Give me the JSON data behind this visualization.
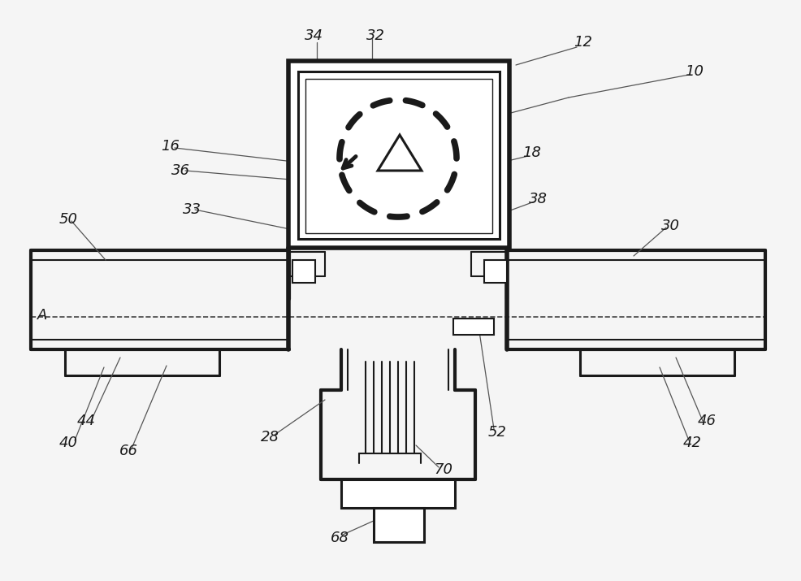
{
  "bg_color": "#f5f5f5",
  "line_color": "#1a1a1a",
  "label_fontsize": 13,
  "figsize": [
    9.87,
    7.15
  ],
  "dpi": 100
}
